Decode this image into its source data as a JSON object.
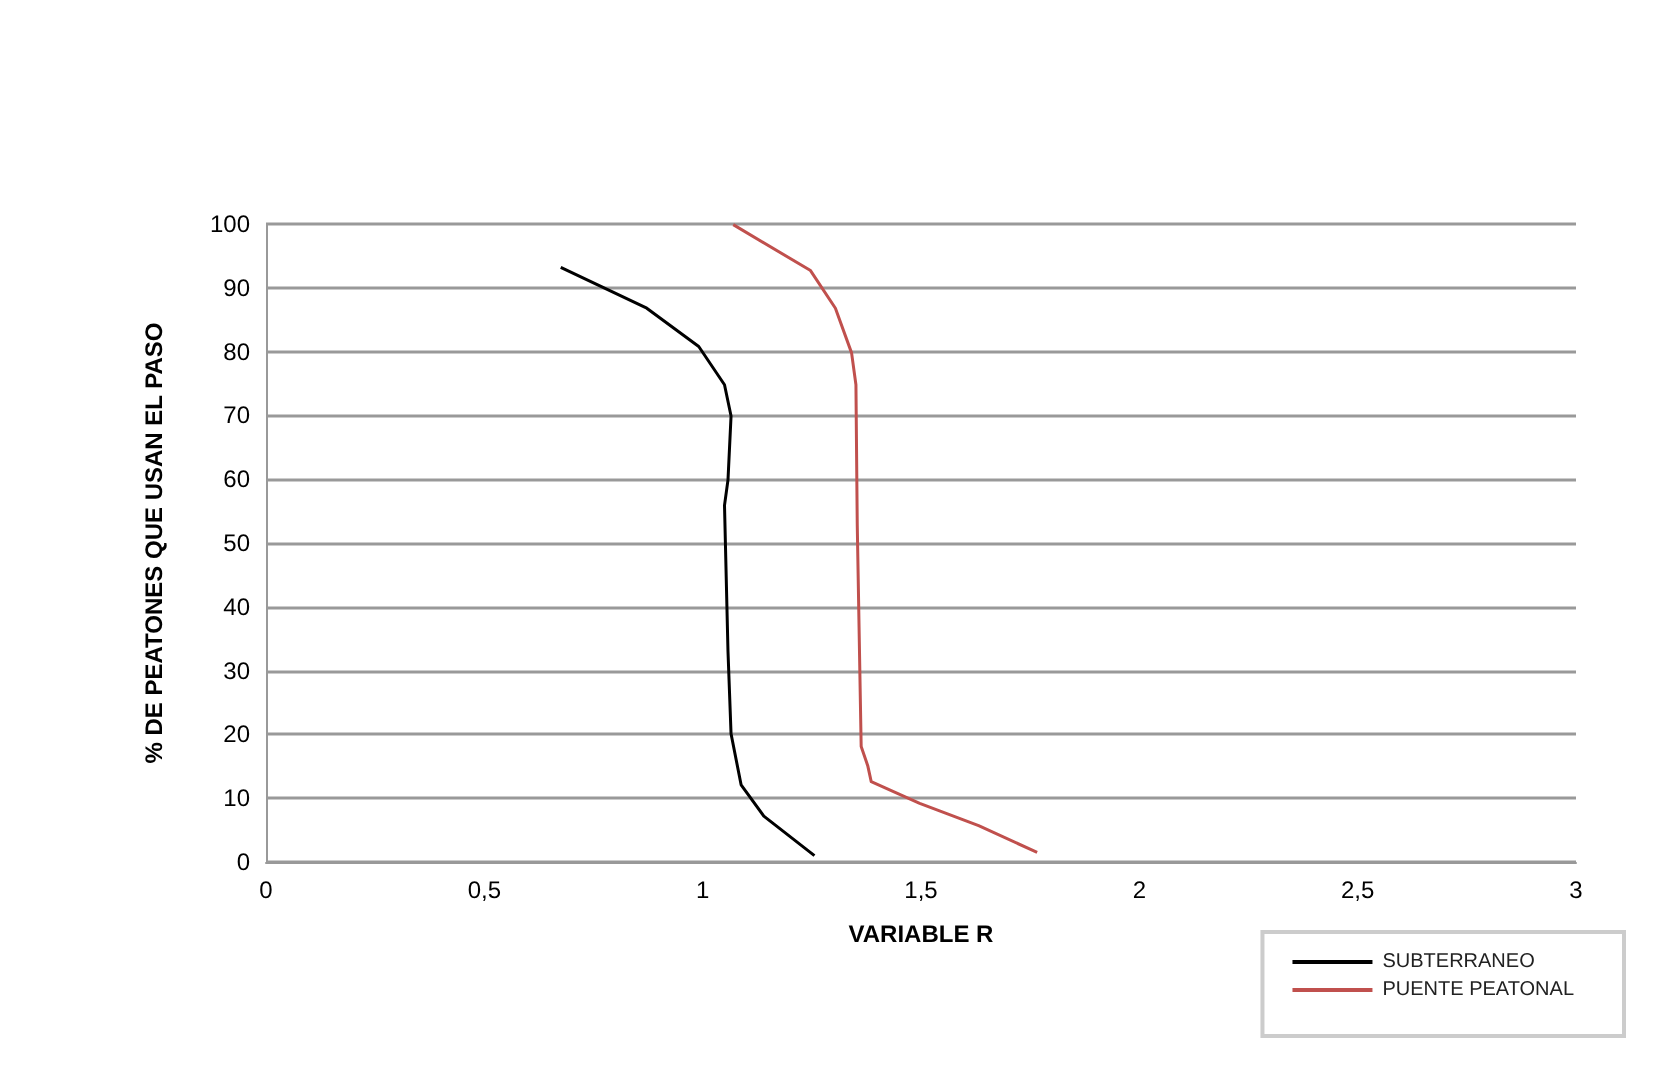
{
  "chart_data": {
    "type": "line",
    "xlabel": "VARIABLE R",
    "ylabel": "% DE PEATONES QUE USAN EL PASO",
    "xlim": [
      0,
      3
    ],
    "xticks": [
      0,
      {
        "value": 0.5,
        "label": "0,5"
      },
      1,
      {
        "value": 1.5,
        "label": "1,5"
      },
      2,
      {
        "value": 2.5,
        "label": "2,5"
      },
      3
    ],
    "ylim": [
      0,
      100
    ],
    "yticks": [
      0,
      10,
      20,
      30,
      40,
      50,
      60,
      70,
      80,
      90,
      100
    ],
    "grid": "y",
    "legend": "bottom right",
    "marker": "none",
    "line_style": "solid",
    "series": [
      {
        "name": "SUBTERRANEO",
        "color": "#000000",
        "x": [
          0.675,
          0.872,
          0.991,
          1.05,
          1.065,
          1.058,
          1.05,
          1.058,
          1.065,
          1.088,
          1.14,
          1.256
        ],
        "values": [
          93.2,
          86.8,
          80.8,
          74.8,
          69.9,
          59.9,
          55.9,
          33,
          20.1,
          12.1,
          7.2,
          1
        ]
      },
      {
        "name": "PUENTE PEATONAL",
        "color": "#c0504d",
        "x": [
          1.07,
          1.247,
          1.304,
          1.341,
          1.351,
          1.354,
          1.363,
          1.378,
          1.386,
          1.497,
          1.632,
          1.766
        ],
        "values": [
          99.9,
          92.7,
          86.8,
          79.8,
          74.8,
          52.9,
          18.1,
          15.1,
          12.6,
          9.2,
          5.7,
          1.5
        ]
      }
    ]
  }
}
